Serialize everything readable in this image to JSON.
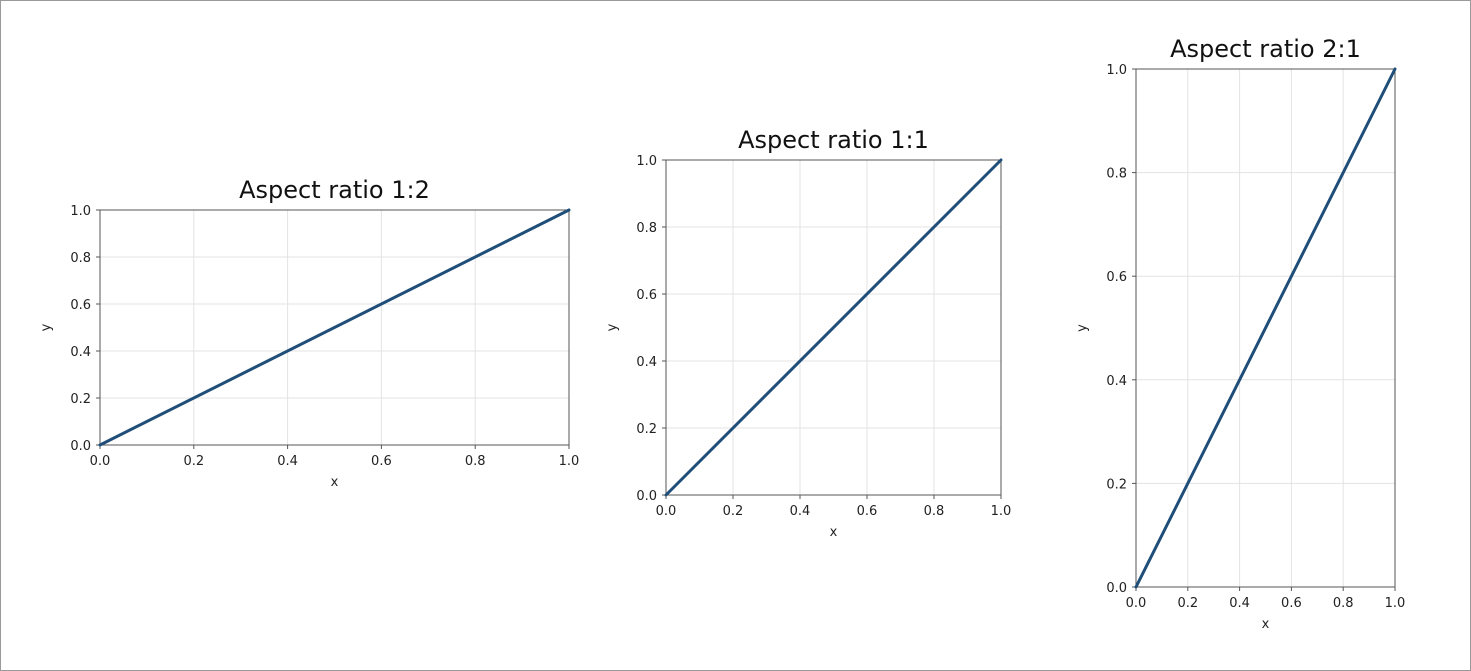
{
  "chart_data": [
    {
      "type": "line",
      "title": "Aspect ratio 1:2",
      "xlabel": "x",
      "ylabel": "y",
      "xlim": [
        0,
        1
      ],
      "ylim": [
        0,
        1
      ],
      "xticks": [
        "0.0",
        "0.2",
        "0.4",
        "0.6",
        "0.8",
        "1.0"
      ],
      "yticks": [
        "0.0",
        "0.2",
        "0.4",
        "0.6",
        "0.8",
        "1.0"
      ],
      "grid": true,
      "color": "#1f4e79",
      "series": [
        {
          "x": [
            0,
            1
          ],
          "y": [
            0,
            1
          ]
        }
      ]
    },
    {
      "type": "line",
      "title": "Aspect ratio 1:1",
      "xlabel": "x",
      "ylabel": "y",
      "xlim": [
        0,
        1
      ],
      "ylim": [
        0,
        1
      ],
      "xticks": [
        "0.0",
        "0.2",
        "0.4",
        "0.6",
        "0.8",
        "1.0"
      ],
      "yticks": [
        "0.0",
        "0.2",
        "0.4",
        "0.6",
        "0.8",
        "1.0"
      ],
      "grid": true,
      "color": "#1f4e79",
      "series": [
        {
          "x": [
            0,
            1
          ],
          "y": [
            0,
            1
          ]
        }
      ]
    },
    {
      "type": "line",
      "title": "Aspect ratio 2:1",
      "xlabel": "x",
      "ylabel": "y",
      "xlim": [
        0,
        1
      ],
      "ylim": [
        0,
        1
      ],
      "xticks": [
        "0.0",
        "0.2",
        "0.4",
        "0.6",
        "0.8",
        "1.0"
      ],
      "yticks": [
        "0.0",
        "0.2",
        "0.4",
        "0.6",
        "0.8",
        "1.0"
      ],
      "grid": true,
      "color": "#1f4e79",
      "series": [
        {
          "x": [
            0,
            1
          ],
          "y": [
            0,
            1
          ]
        }
      ]
    }
  ]
}
